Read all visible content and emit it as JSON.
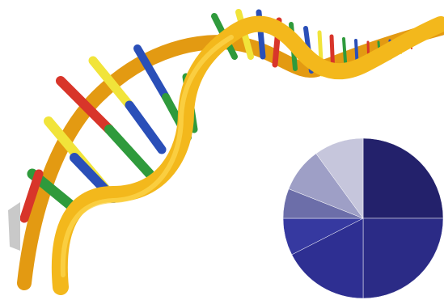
{
  "illustration": {
    "subject": "dna-double-helix",
    "backbone_colors": [
      "#f3b81c",
      "#e39a12",
      "#fbd34a"
    ],
    "base_pair_colors": {
      "red": "#d8352a",
      "green": "#2f9a3c",
      "blue": "#2a4fb8",
      "yellow": "#f1e43a"
    }
  },
  "pie_chart": {
    "type": "pie",
    "slices": [
      {
        "share": 0.25,
        "color": "#23216b"
      },
      {
        "share": 0.25,
        "color": "#2b2b86"
      },
      {
        "share": 0.175,
        "color": "#2e2f92"
      },
      {
        "share": 0.075,
        "color": "#3639a0"
      },
      {
        "share": 0.06,
        "color": "#6c6ea9"
      },
      {
        "share": 0.09,
        "color": "#9e9fc6"
      },
      {
        "share": 0.1,
        "color": "#c6c6dc"
      }
    ]
  }
}
